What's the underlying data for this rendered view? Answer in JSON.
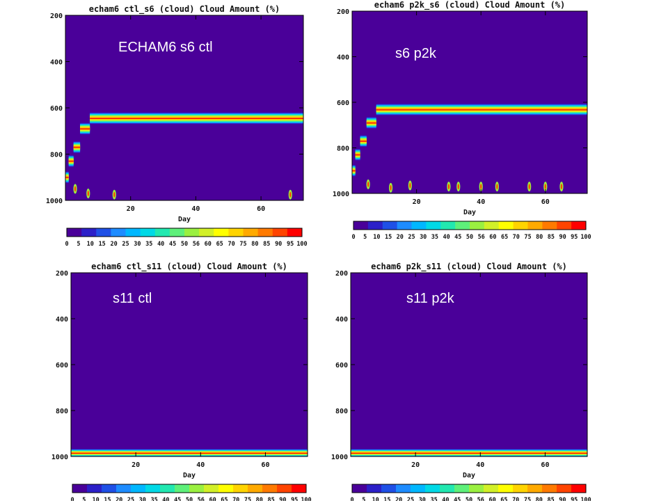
{
  "colors": {
    "background": "#4a0099",
    "contour_scale": [
      "#4a0099",
      "#2c20c8",
      "#1f50e6",
      "#1e8cff",
      "#00b7ff",
      "#00d9e6",
      "#22e8b0",
      "#5ef07a",
      "#9af040",
      "#d2f028",
      "#ffff00",
      "#ffd400",
      "#ffaa00",
      "#ff7a00",
      "#ff4400",
      "#ff0000"
    ]
  },
  "slide_labels": {
    "p1": "ECHAM6 s6 ctl",
    "p2": "s6 p2k",
    "p3": "s11 ctl",
    "p4": "s11 p2k"
  },
  "chart_data": [
    {
      "type": "heatmap",
      "title": "echam6 ctl_s6   (cloud)   Cloud Amount (%)",
      "xlabel": "Day",
      "ylabel": "",
      "x_ticks": [
        20,
        40,
        60
      ],
      "y_ticks": [
        200,
        400,
        600,
        800,
        1000
      ],
      "xlim": [
        0,
        73
      ],
      "ylim": [
        1000,
        200
      ],
      "colorbar_ticks": [
        "0",
        "5",
        "10",
        "15",
        "20",
        "25",
        "30",
        "35",
        "40",
        "45",
        "50",
        "56",
        "60",
        "65",
        "70",
        "75",
        "80",
        "85",
        "90",
        "95",
        "100"
      ],
      "cloud_layer": {
        "steps": [
          [
            0,
            900
          ],
          [
            1,
            830
          ],
          [
            2.5,
            770
          ],
          [
            4.5,
            690
          ],
          [
            7.5,
            645
          ]
        ],
        "thickness": 50,
        "peak": 100
      },
      "isolated_spots": [
        [
          3,
          950
        ],
        [
          7,
          970
        ],
        [
          15,
          975
        ],
        [
          69,
          975
        ]
      ]
    },
    {
      "type": "heatmap",
      "title": "echam6 p2k_s6   (cloud)   Cloud Amount (%)",
      "xlabel": "Day",
      "ylabel": "",
      "x_ticks": [
        20,
        40,
        60
      ],
      "y_ticks": [
        200,
        400,
        600,
        800,
        1000
      ],
      "xlim": [
        0,
        73
      ],
      "ylim": [
        1000,
        200
      ],
      "colorbar_ticks": [
        "0",
        "5",
        "10",
        "15",
        "20",
        "25",
        "30",
        "35",
        "40",
        "45",
        "50",
        "56",
        "60",
        "65",
        "70",
        "75",
        "80",
        "85",
        "90",
        "95",
        "100"
      ],
      "cloud_layer": {
        "steps": [
          [
            0,
            900
          ],
          [
            1,
            830
          ],
          [
            2.5,
            770
          ],
          [
            4.5,
            690
          ],
          [
            7.5,
            632
          ]
        ],
        "thickness": 50,
        "peak": 100
      },
      "isolated_spots": [
        [
          5,
          960
        ],
        [
          12,
          975
        ],
        [
          18,
          965
        ],
        [
          30,
          970
        ],
        [
          33,
          970
        ],
        [
          40,
          970
        ],
        [
          45,
          970
        ],
        [
          55,
          970
        ],
        [
          60,
          970
        ],
        [
          65,
          970
        ]
      ]
    },
    {
      "type": "heatmap",
      "title": "echam6 ctl_s11   (cloud)   Cloud Amount (%)",
      "xlabel": "Day",
      "ylabel": "",
      "x_ticks": [
        20,
        40,
        60
      ],
      "y_ticks": [
        200,
        400,
        600,
        800,
        1000
      ],
      "xlim": [
        0,
        73
      ],
      "ylim": [
        1000,
        200
      ],
      "colorbar_ticks": [
        "0",
        "5",
        "10",
        "15",
        "20",
        "25",
        "30",
        "35",
        "40",
        "45",
        "50",
        "56",
        "60",
        "65",
        "70",
        "75",
        "80",
        "85",
        "90",
        "95",
        "100"
      ],
      "cloud_layer": {
        "steps": [
          [
            0,
            985
          ]
        ],
        "thickness": 35,
        "peak": 100
      },
      "isolated_spots": []
    },
    {
      "type": "heatmap",
      "title": "echam6 p2k_s11   (cloud)   Cloud Amount (%)",
      "xlabel": "Day",
      "ylabel": "",
      "x_ticks": [
        20,
        40,
        60
      ],
      "y_ticks": [
        200,
        400,
        600,
        800,
        1000
      ],
      "xlim": [
        0,
        73
      ],
      "ylim": [
        1000,
        200
      ],
      "colorbar_ticks": [
        "0",
        "5",
        "10",
        "15",
        "20",
        "25",
        "30",
        "35",
        "40",
        "45",
        "50",
        "56",
        "60",
        "65",
        "70",
        "75",
        "80",
        "85",
        "90",
        "95",
        "100"
      ],
      "cloud_layer": {
        "steps": [
          [
            0,
            985
          ]
        ],
        "thickness": 35,
        "peak": 100
      },
      "isolated_spots": []
    }
  ]
}
